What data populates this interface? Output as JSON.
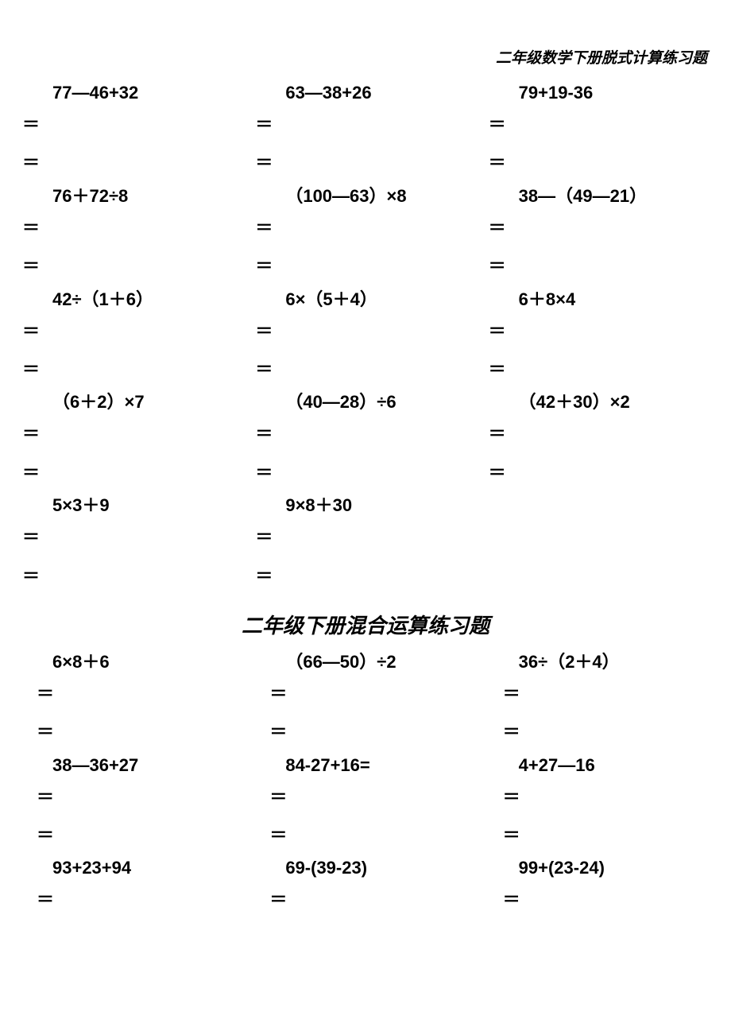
{
  "header_text": "二年级数学下册脱式计算练习题",
  "section_title": "二年级下册混合运算练习题",
  "equals_sign": "＝",
  "section1": {
    "rows": [
      {
        "problems": [
          "77—46+32",
          "63—38+26",
          "79+19-36"
        ],
        "indent": false
      },
      {
        "problems": [
          "76＋72÷8",
          "（100—63）×8",
          "38—（49—21）"
        ],
        "indent": false
      },
      {
        "problems": [
          "42÷（1＋6）",
          "6×（5＋4）",
          "6＋8×4"
        ],
        "indent": false
      },
      {
        "problems": [
          "（6＋2）×7",
          "（40—28）÷6",
          "（42＋30）×2"
        ],
        "indent": false
      },
      {
        "problems": [
          "5×3＋9",
          "9×8＋30",
          ""
        ],
        "indent": false
      }
    ]
  },
  "section2": {
    "rows": [
      {
        "problems": [
          "6×8＋6",
          "（66—50）÷2",
          "36÷（2＋4）"
        ],
        "indent": true
      },
      {
        "problems": [
          "38—36+27",
          "84-27+16=",
          "4+27—16"
        ],
        "indent": true
      },
      {
        "problems": [
          "93+23+94",
          "69-(39-23)",
          "99+(23-24)"
        ],
        "indent": true,
        "single_equals": true
      }
    ]
  }
}
